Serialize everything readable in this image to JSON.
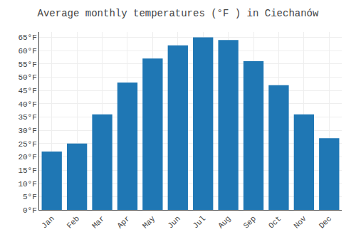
{
  "chart_data": {
    "type": "bar",
    "title": "Average monthly temperatures (°F ) in Ciechanów",
    "categories": [
      "Jan",
      "Feb",
      "Mar",
      "Apr",
      "May",
      "Jun",
      "Jul",
      "Aug",
      "Sep",
      "Oct",
      "Nov",
      "Dec"
    ],
    "values": [
      22,
      25,
      36,
      48,
      57,
      62,
      65,
      64,
      56,
      47,
      36,
      27
    ],
    "ylim": [
      0,
      67
    ],
    "yticks": [
      {
        "value": 0,
        "label": "0°F"
      },
      {
        "value": 5,
        "label": "5°F"
      },
      {
        "value": 10,
        "label": "10°F"
      },
      {
        "value": 15,
        "label": "15°F"
      },
      {
        "value": 20,
        "label": "20°F"
      },
      {
        "value": 25,
        "label": "25°F"
      },
      {
        "value": 30,
        "label": "30°F"
      },
      {
        "value": 35,
        "label": "35°F"
      },
      {
        "value": 40,
        "label": "40°F"
      },
      {
        "value": 45,
        "label": "45°F"
      },
      {
        "value": 50,
        "label": "50°F"
      },
      {
        "value": 55,
        "label": "55°F"
      },
      {
        "value": 60,
        "label": "60°F"
      },
      {
        "value": 65,
        "label": "65°F"
      }
    ],
    "grid": true
  }
}
